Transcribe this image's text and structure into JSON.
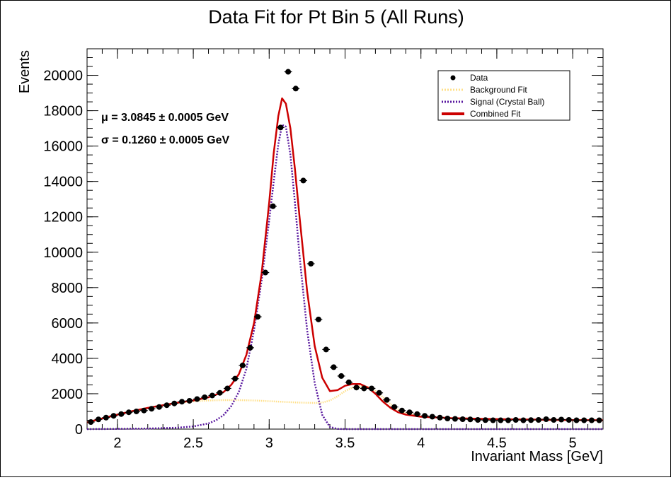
{
  "chart_data": {
    "type": "scatter",
    "title": "Data Fit for Pt Bin 5 (All Runs)",
    "xlabel": "Invariant Mass [GeV]",
    "ylabel": "Events",
    "xlim": [
      1.8,
      5.2
    ],
    "ylim": [
      0,
      21500
    ],
    "x_ticks": [
      2,
      2.5,
      3,
      3.5,
      4,
      4.5,
      5
    ],
    "y_ticks": [
      0,
      2000,
      4000,
      6000,
      8000,
      10000,
      12000,
      14000,
      16000,
      18000,
      20000
    ],
    "x_tick_labels": [
      "2",
      "2.5",
      "3",
      "3.5",
      "4",
      "4.5",
      "5"
    ],
    "y_tick_labels": [
      "0",
      "2000",
      "4000",
      "6000",
      "8000",
      "10000",
      "12000",
      "14000",
      "16000",
      "18000",
      "20000"
    ],
    "grid": false,
    "legend_position": "top-right",
    "legend": [
      {
        "label": "Data",
        "style": "marker",
        "color": "#000000"
      },
      {
        "label": "Background Fit",
        "style": "dotted",
        "color": "#ffe08a"
      },
      {
        "label": "Signal (Crystal Ball)",
        "style": "dotted",
        "color": "#5a1aa0"
      },
      {
        "label": "Combined Fit",
        "style": "solid",
        "color": "#cc0000"
      }
    ],
    "annotations": [
      {
        "text": "μ = 3.0845 ± 0.0005 GeV"
      },
      {
        "text": "σ = 0.1260 ± 0.0005 GeV"
      }
    ],
    "series": [
      {
        "name": "Data",
        "kind": "points",
        "color": "#000000",
        "x": [
          1.825,
          1.875,
          1.925,
          1.975,
          2.025,
          2.075,
          2.125,
          2.175,
          2.225,
          2.275,
          2.325,
          2.375,
          2.425,
          2.475,
          2.525,
          2.575,
          2.625,
          2.675,
          2.725,
          2.775,
          2.825,
          2.875,
          2.925,
          2.975,
          3.025,
          3.075,
          3.125,
          3.175,
          3.225,
          3.275,
          3.325,
          3.375,
          3.425,
          3.475,
          3.525,
          3.575,
          3.625,
          3.675,
          3.725,
          3.775,
          3.825,
          3.875,
          3.925,
          3.975,
          4.025,
          4.075,
          4.125,
          4.175,
          4.225,
          4.275,
          4.325,
          4.375,
          4.425,
          4.475,
          4.525,
          4.575,
          4.625,
          4.675,
          4.725,
          4.775,
          4.825,
          4.875,
          4.925,
          4.975,
          5.025,
          5.075,
          5.125,
          5.175
        ],
        "y": [
          400,
          550,
          650,
          750,
          850,
          950,
          1000,
          1050,
          1150,
          1250,
          1350,
          1450,
          1550,
          1600,
          1700,
          1800,
          1900,
          2050,
          2300,
          2850,
          3600,
          4600,
          6350,
          8850,
          12600,
          17050,
          20200,
          19250,
          14050,
          9350,
          6200,
          4500,
          3500,
          3000,
          2650,
          2350,
          2300,
          2300,
          2050,
          1650,
          1250,
          1050,
          950,
          850,
          750,
          700,
          650,
          600,
          580,
          560,
          550,
          520,
          510,
          500,
          500,
          500,
          520,
          500,
          510,
          520,
          560,
          520,
          540,
          520,
          500,
          500,
          500,
          500
        ]
      },
      {
        "name": "Combined Fit",
        "kind": "line",
        "color": "#cc0000",
        "x": [
          1.8,
          1.9,
          2.0,
          2.1,
          2.2,
          2.3,
          2.4,
          2.5,
          2.6,
          2.7,
          2.75,
          2.8,
          2.85,
          2.9,
          2.95,
          3.0,
          3.03,
          3.06,
          3.085,
          3.11,
          3.14,
          3.17,
          3.2,
          3.25,
          3.3,
          3.35,
          3.4,
          3.45,
          3.5,
          3.55,
          3.6,
          3.65,
          3.7,
          3.75,
          3.8,
          3.85,
          3.9,
          4.0,
          4.2,
          4.4,
          4.6,
          4.8,
          5.0,
          5.2
        ],
        "y": [
          380,
          600,
          820,
          1020,
          1200,
          1350,
          1500,
          1620,
          1800,
          2100,
          2500,
          3100,
          4200,
          6000,
          8800,
          12800,
          15600,
          17700,
          18700,
          18400,
          17000,
          14700,
          12000,
          7800,
          4700,
          2900,
          2150,
          2200,
          2450,
          2550,
          2550,
          2350,
          2000,
          1550,
          1200,
          950,
          820,
          700,
          620,
          580,
          550,
          530,
          510,
          500
        ]
      },
      {
        "name": "Signal (Crystal Ball)",
        "kind": "line",
        "color": "#5a1aa0",
        "x": [
          1.8,
          2.0,
          2.2,
          2.4,
          2.5,
          2.6,
          2.65,
          2.7,
          2.75,
          2.8,
          2.85,
          2.9,
          2.95,
          3.0,
          3.03,
          3.06,
          3.085,
          3.11,
          3.14,
          3.17,
          3.2,
          3.25,
          3.3,
          3.35,
          3.4,
          3.45,
          3.5,
          3.6,
          3.8,
          4.0,
          4.5,
          5.0,
          5.2
        ],
        "y": [
          0,
          10,
          30,
          80,
          150,
          320,
          500,
          800,
          1300,
          2100,
          3400,
          5600,
          8400,
          11800,
          14000,
          16100,
          17200,
          17100,
          15500,
          12800,
          9800,
          5600,
          2600,
          800,
          120,
          10,
          0,
          0,
          0,
          0,
          0,
          0,
          0
        ]
      },
      {
        "name": "Background Fit",
        "kind": "line",
        "color": "#ffe08a",
        "x": [
          1.8,
          1.9,
          2.0,
          2.1,
          2.2,
          2.3,
          2.4,
          2.5,
          2.6,
          2.7,
          2.8,
          2.9,
          3.0,
          3.1,
          3.2,
          3.3,
          3.35,
          3.4,
          3.45,
          3.5,
          3.55,
          3.6,
          3.65,
          3.7,
          3.75,
          3.8,
          3.85,
          3.9,
          4.0,
          4.2,
          4.4,
          4.6,
          4.8,
          5.0,
          5.2
        ],
        "y": [
          380,
          600,
          820,
          1020,
          1200,
          1350,
          1480,
          1570,
          1620,
          1640,
          1640,
          1620,
          1580,
          1540,
          1500,
          1480,
          1500,
          1620,
          1850,
          2150,
          2350,
          2450,
          2380,
          2150,
          1800,
          1400,
          1100,
          900,
          720,
          620,
          580,
          550,
          530,
          510,
          500
        ]
      }
    ]
  }
}
